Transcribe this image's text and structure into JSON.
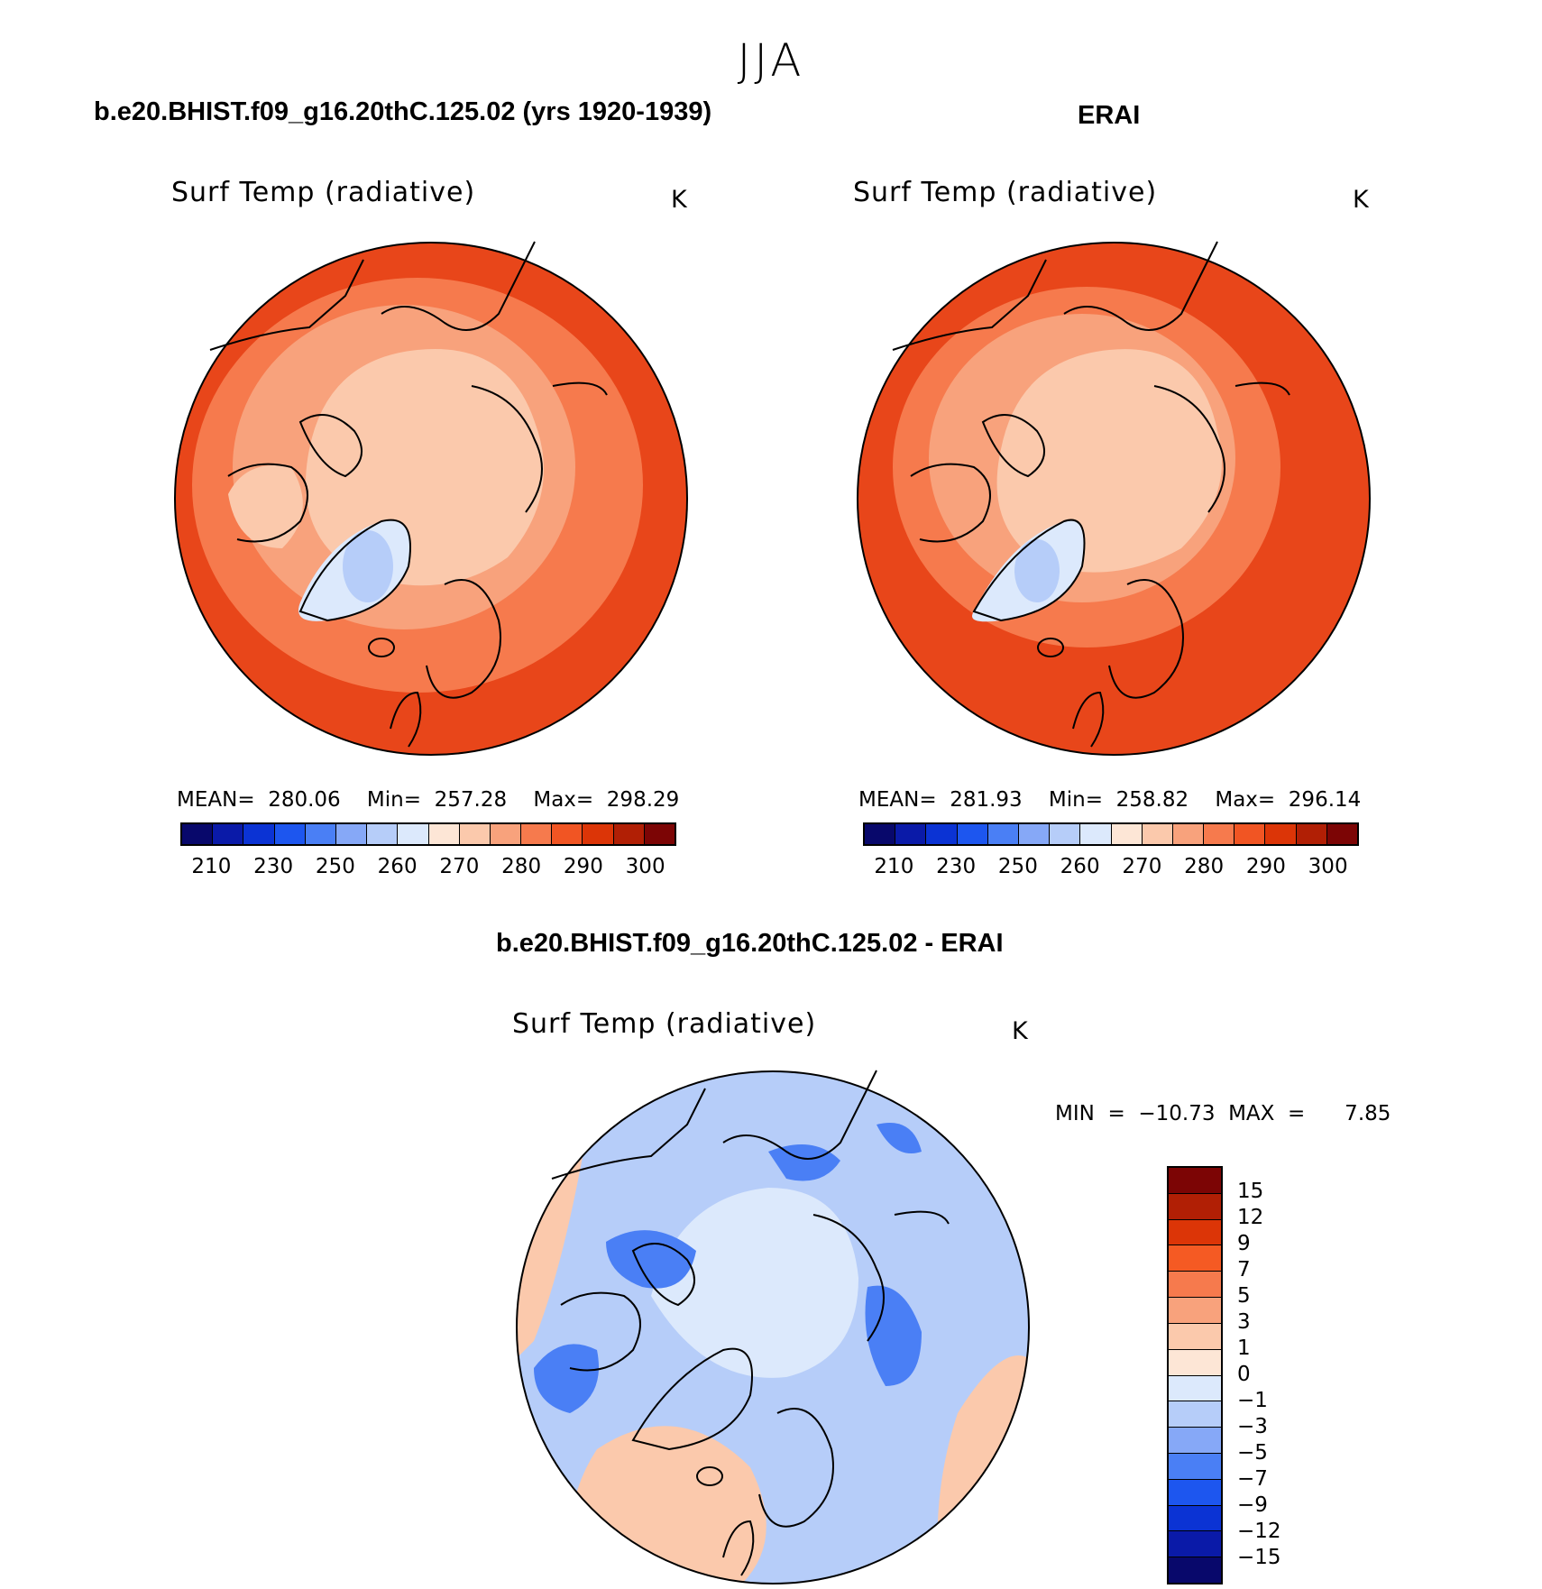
{
  "season": "JJA",
  "panels": [
    {
      "title": "b.e20.BHIST.f09_g16.20thC.125.02 (yrs 1920-1939)",
      "variable": "Surf Temp (radiative)",
      "unit": "K",
      "stats": "MEAN=  280.06    Min=  257.28    Max=  298.29"
    },
    {
      "title": "ERAI",
      "variable": "Surf Temp (radiative)",
      "unit": "K",
      "stats": "MEAN=  281.93    Min=  258.82    Max=  296.14"
    },
    {
      "title": "b.e20.BHIST.f09_g16.20thC.125.02 - ERAI",
      "variable": "Surf Temp (radiative)",
      "unit": "K",
      "stats": "MIN  =  −10.73  MAX  =      7.85"
    }
  ],
  "colorbar_abs": {
    "colors": [
      "#08086b",
      "#0a1aa8",
      "#0b33d4",
      "#1d56ef",
      "#4a7ff5",
      "#86a8f7",
      "#b6cdf9",
      "#dce9fc",
      "#fde6d6",
      "#fbc9ac",
      "#f8a27c",
      "#f67a4d",
      "#f15523",
      "#dc3507",
      "#b11f05",
      "#7c0505"
    ],
    "ticks": [
      "210",
      "230",
      "250",
      "260",
      "270",
      "280",
      "290",
      "300"
    ]
  },
  "colorbar_diff": {
    "colors": [
      "#7c0505",
      "#b11f05",
      "#dc3507",
      "#f55a23",
      "#f67a4d",
      "#f8a27c",
      "#fbc9ac",
      "#fde6d6",
      "#dce9fc",
      "#b6cdf9",
      "#86a8f7",
      "#4a7ff5",
      "#1d56ef",
      "#0b33d4",
      "#0a1aa8",
      "#08086b"
    ],
    "ticks": [
      "15",
      "12",
      "9",
      "7",
      "5",
      "3",
      "1",
      "0",
      "−1",
      "−3",
      "−5",
      "−7",
      "−9",
      "−12",
      "−15"
    ]
  },
  "map_colors": {
    "warm_outer": "#e8461a",
    "warm_mid": "#f67a4d",
    "warm_light": "#f8a27c",
    "arctic": "#fbc9ac",
    "greenland": "#dce9fc",
    "greenland_core": "#b6cdf9",
    "diff_base": "#b6cdf9",
    "diff_light": "#dce9fc",
    "diff_dark": "#4a7ff5",
    "diff_warm": "#fbc9ac"
  }
}
